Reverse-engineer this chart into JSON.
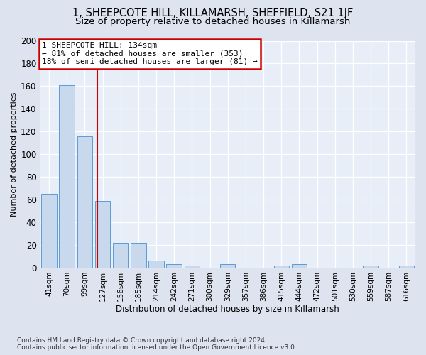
{
  "title": "1, SHEEPCOTE HILL, KILLAMARSH, SHEFFIELD, S21 1JF",
  "subtitle": "Size of property relative to detached houses in Killamarsh",
  "xlabel": "Distribution of detached houses by size in Killamarsh",
  "ylabel": "Number of detached properties",
  "footer_line1": "Contains HM Land Registry data © Crown copyright and database right 2024.",
  "footer_line2": "Contains public sector information licensed under the Open Government Licence v3.0.",
  "bin_labels": [
    "41sqm",
    "70sqm",
    "99sqm",
    "127sqm",
    "156sqm",
    "185sqm",
    "214sqm",
    "242sqm",
    "271sqm",
    "300sqm",
    "329sqm",
    "357sqm",
    "386sqm",
    "415sqm",
    "444sqm",
    "472sqm",
    "501sqm",
    "530sqm",
    "559sqm",
    "587sqm",
    "616sqm"
  ],
  "bar_heights": [
    65,
    161,
    116,
    59,
    22,
    22,
    6,
    3,
    2,
    0,
    3,
    0,
    0,
    2,
    3,
    0,
    0,
    0,
    2,
    0,
    2
  ],
  "bar_color": "#c8d8ed",
  "bar_edge_color": "#5b9bd5",
  "property_line_color": "#cc0000",
  "annotation_text_line1": "1 SHEEPCOTE HILL: 134sqm",
  "annotation_text_line2": "← 81% of detached houses are smaller (353)",
  "annotation_text_line3": "18% of semi-detached houses are larger (81) →",
  "annotation_box_color": "#ffffff",
  "annotation_box_edge": "#cc0000",
  "ylim": [
    0,
    200
  ],
  "yticks": [
    0,
    20,
    40,
    60,
    80,
    100,
    120,
    140,
    160,
    180,
    200
  ],
  "bg_color": "#dde4f0",
  "plot_bg_color": "#e8eef8",
  "title_fontsize": 10.5,
  "subtitle_fontsize": 9.5,
  "line_x_index": 2.72
}
